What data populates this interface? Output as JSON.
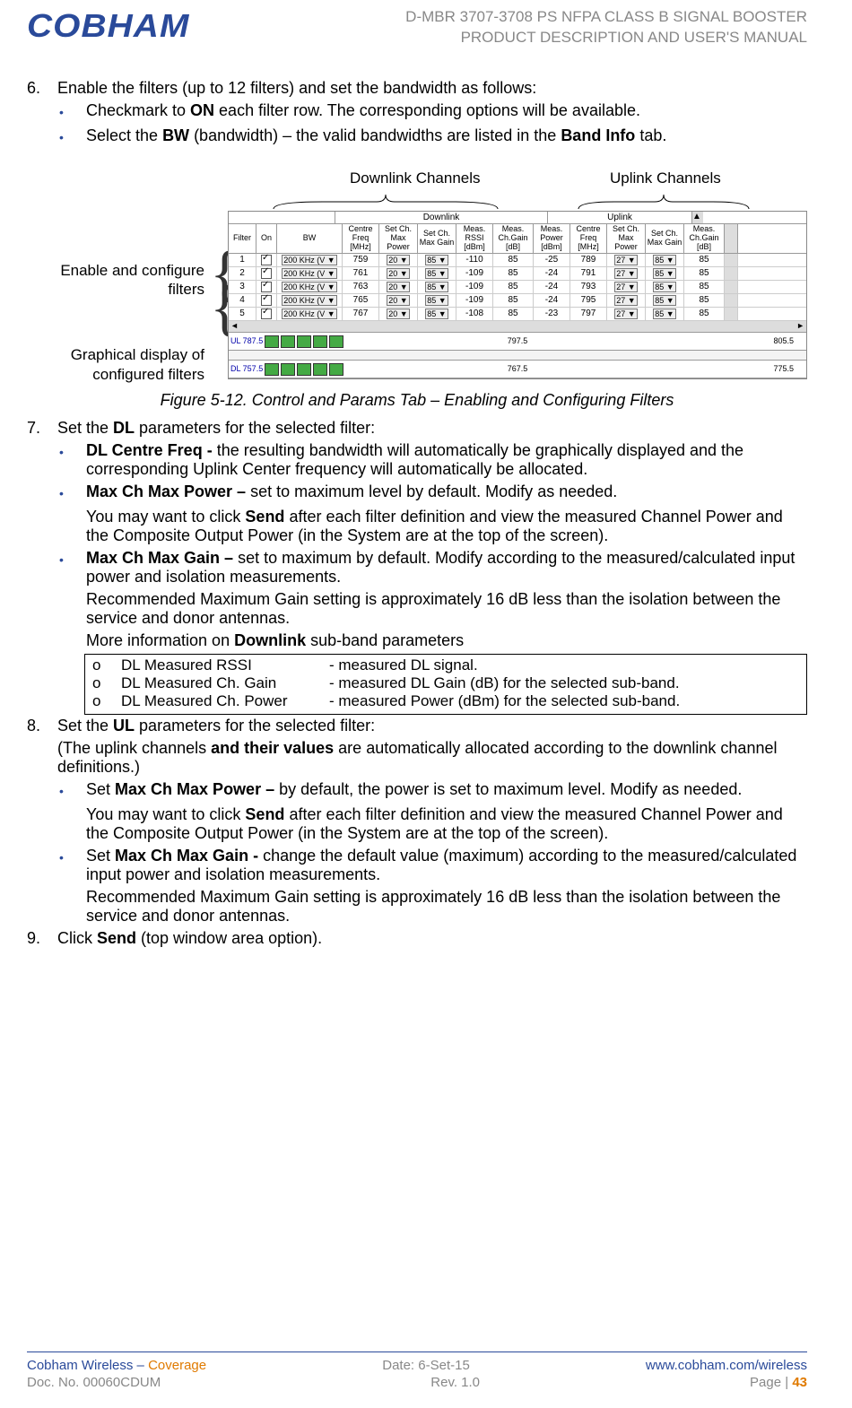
{
  "header": {
    "logo_text": "COBHAM",
    "title_line1": "D-MBR 3707-3708 PS NFPA CLASS B SIGNAL BOOSTER",
    "title_line2": "PRODUCT DESCRIPTION AND USER'S MANUAL"
  },
  "step6": {
    "num": "6.",
    "text_before": "Enable the filters (up to 12 filters) and set the bandwidth as follows:",
    "bullet1_a": "Checkmark to ",
    "bullet1_b": "ON",
    "bullet1_c": " each filter row. The corresponding options will be available.",
    "bullet2_a": "Select the ",
    "bullet2_b": "BW",
    "bullet2_c": " (bandwidth) – the valid bandwidths are listed in the ",
    "bullet2_d": "Band Info",
    "bullet2_e": " tab."
  },
  "figure": {
    "downlink_label": "Downlink Channels",
    "uplink_label": "Uplink Channels",
    "side_label1": "Enable and configure filters",
    "side_label2": "Graphical display of configured filters",
    "caption": "Figure 5-12. Control and Params Tab – Enabling and Configuring Filters",
    "group_downlink": "Downlink",
    "group_uplink": "Uplink",
    "cols": {
      "filter": "Filter",
      "on": "On",
      "bw": "BW",
      "cf": "Centre Freq [MHz]",
      "smp": "Set Ch. Max Power",
      "smg": "Set Ch. Max Gain",
      "rssi": "Meas. RSSI [dBm]",
      "mcg": "Meas. Ch.Gain [dB]",
      "mp": "Meas. Power [dBm]",
      "cf2": "Centre Freq [MHz]",
      "smp2": "Set Ch. Max Power",
      "smg2": "Set Ch. Max Gain",
      "mcg2": "Meas. Ch.Gain [dB]"
    },
    "rows": [
      {
        "f": "1",
        "bw": "200 KHz (V",
        "cf": "759",
        "smp": "20",
        "smg": "85",
        "rssi": "-110",
        "mcg": "85",
        "mp": "-25",
        "cf2": "789",
        "smp2": "27",
        "smg2": "85",
        "mcg2": "85"
      },
      {
        "f": "2",
        "bw": "200 KHz (V",
        "cf": "761",
        "smp": "20",
        "smg": "85",
        "rssi": "-109",
        "mcg": "85",
        "mp": "-24",
        "cf2": "791",
        "smp2": "27",
        "smg2": "85",
        "mcg2": "85"
      },
      {
        "f": "3",
        "bw": "200 KHz (V",
        "cf": "763",
        "smp": "20",
        "smg": "85",
        "rssi": "-109",
        "mcg": "85",
        "mp": "-24",
        "cf2": "793",
        "smp2": "27",
        "smg2": "85",
        "mcg2": "85"
      },
      {
        "f": "4",
        "bw": "200 KHz (V",
        "cf": "765",
        "smp": "20",
        "smg": "85",
        "rssi": "-109",
        "mcg": "85",
        "mp": "-24",
        "cf2": "795",
        "smp2": "27",
        "smg2": "85",
        "mcg2": "85"
      },
      {
        "f": "5",
        "bw": "200 KHz (V",
        "cf": "767",
        "smp": "20",
        "smg": "85",
        "rssi": "-108",
        "mcg": "85",
        "mp": "-23",
        "cf2": "797",
        "smp2": "27",
        "smg2": "85",
        "mcg2": "85"
      }
    ],
    "spectrum": {
      "ul_l": "UL 787.5",
      "ul_m": "797.5",
      "ul_r": "805.5",
      "dl_l": "DL 757.5",
      "dl_m": "767.5",
      "dl_r": "775.5"
    }
  },
  "step7": {
    "num": "7.",
    "text": "Set the ",
    "text_b": "DL",
    "text_c": " parameters for the selected filter:",
    "b1_a": "DL Centre Freq -",
    "b1_b": " the resulting bandwidth will automatically be graphically displayed and the corresponding Uplink Center frequency will automatically be allocated.",
    "b2_a": "Max Ch Max Power –",
    "b2_b": " set to maximum level by default. Modify as needed.",
    "b2_p1a": "You may want to click ",
    "b2_p1b": "Send",
    "b2_p1c": " after each filter definition and view the measured Channel Power and the Composite Output Power (in the System are at the top of the screen).",
    "b3_a": "Max Ch Max Gain –",
    "b3_b": " set to maximum by default. Modify according to the measured/calculated input power and isolation measurements.",
    "b3_p1": "Recommended Maximum Gain setting is approximately 16 dB less than the isolation between the service and donor antennas.",
    "b3_p2a": "More information on ",
    "b3_p2b": "Downlink",
    "b3_p2c": " sub-band parameters",
    "box": [
      {
        "o": "o",
        "name": "DL Measured RSSI",
        "desc": "- measured DL signal."
      },
      {
        "o": "o",
        "name": "DL Measured Ch. Gain",
        "desc": "- measured DL Gain (dB) for the selected sub-band."
      },
      {
        "o": "o",
        "name": "DL Measured Ch. Power",
        "desc": "- measured Power (dBm) for the selected sub-band."
      }
    ]
  },
  "step8": {
    "num": "8.",
    "text": "Set the ",
    "text_b": "UL",
    "text_c": " parameters for the selected filter:",
    "p1a": "(The uplink channels ",
    "p1b": "and their values",
    "p1c": " are automatically allocated according to the downlink channel definitions.)",
    "b1_a": "Set ",
    "b1_b": "Max Ch Max Power –",
    "b1_c": " by default, the power is set to maximum level. Modify as needed.",
    "b1_p1a": "You may want to click ",
    "b1_p1b": "Send",
    "b1_p1c": " after each filter definition and view the measured Channel Power and the Composite Output Power (in the System are at the top of the screen).",
    "b2_a": "Set ",
    "b2_b": "Max Ch Max Gain -",
    "b2_c": " change the default value (maximum) according to the measured/calculated input power and isolation measurements.",
    "b2_p1": "Recommended Maximum Gain setting is approximately 16 dB less than the isolation between the service and donor antennas."
  },
  "step9": {
    "num": "9.",
    "text_a": "Click ",
    "text_b": "Send",
    "text_c": " (top window area option)."
  },
  "footer": {
    "l1_brand": "Cobham Wireless",
    "l1_sep": " – ",
    "l1_cov": "Coverage",
    "l1_date": "Date: 6-Set-15",
    "l1_url": "www.cobham.com/wireless",
    "l2_doc": "Doc. No. 00060CDUM",
    "l2_rev": "Rev. 1.0",
    "l2_page_a": "Page | ",
    "l2_page_b": "43"
  }
}
